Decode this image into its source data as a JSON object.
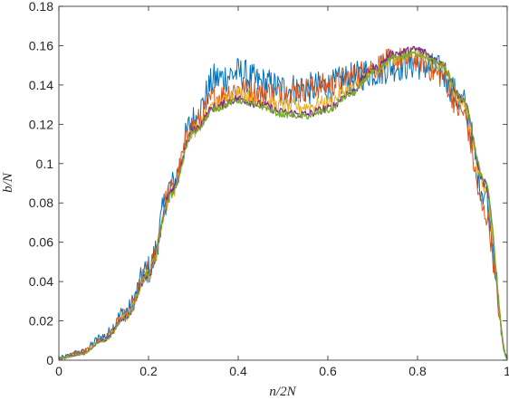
{
  "chart_data": {
    "type": "line",
    "title": "",
    "xlabel": "n/2N",
    "ylabel": "b/N",
    "xlim": [
      0,
      1
    ],
    "ylim": [
      0,
      0.18
    ],
    "xticks": [
      0,
      0.2,
      0.4,
      0.6,
      0.8,
      1
    ],
    "yticks": [
      0,
      0.02,
      0.04,
      0.06,
      0.08,
      0.1,
      0.12,
      0.14,
      0.16,
      0.18
    ],
    "xtick_labels": [
      "0",
      "0.2",
      "0.4",
      "0.6",
      "0.8",
      "1"
    ],
    "ytick_labels": [
      "0",
      "0.02",
      "0.04",
      "0.06",
      "0.08",
      "0.1",
      "0.12",
      "0.14",
      "0.16",
      "0.18"
    ],
    "grid": false,
    "legend": "none",
    "x": [
      0,
      0.05,
      0.1,
      0.15,
      0.2,
      0.25,
      0.3,
      0.35,
      0.4,
      0.45,
      0.5,
      0.55,
      0.6,
      0.65,
      0.7,
      0.75,
      0.8,
      0.85,
      0.9,
      0.95,
      1.0
    ],
    "series": [
      {
        "color": "#0072BD",
        "noise": 0.0085,
        "values": [
          0.001,
          0.004,
          0.012,
          0.025,
          0.046,
          0.088,
          0.122,
          0.143,
          0.146,
          0.141,
          0.138,
          0.138,
          0.139,
          0.143,
          0.147,
          0.15,
          0.151,
          0.147,
          0.131,
          0.085,
          0.001
        ]
      },
      {
        "color": "#D95319",
        "noise": 0.0065,
        "values": [
          0.001,
          0.004,
          0.011,
          0.023,
          0.045,
          0.086,
          0.12,
          0.134,
          0.138,
          0.136,
          0.136,
          0.138,
          0.14,
          0.144,
          0.149,
          0.153,
          0.153,
          0.145,
          0.126,
          0.075,
          0.001
        ]
      },
      {
        "color": "#EDB120",
        "noise": 0.0038,
        "values": [
          0.001,
          0.003,
          0.01,
          0.022,
          0.044,
          0.085,
          0.117,
          0.13,
          0.136,
          0.132,
          0.129,
          0.129,
          0.131,
          0.138,
          0.147,
          0.154,
          0.156,
          0.15,
          0.131,
          0.088,
          0.001
        ]
      },
      {
        "color": "#7E2F8E",
        "noise": 0.0022,
        "values": [
          0.001,
          0.003,
          0.01,
          0.022,
          0.044,
          0.085,
          0.117,
          0.129,
          0.133,
          0.13,
          0.126,
          0.125,
          0.128,
          0.136,
          0.148,
          0.156,
          0.158,
          0.152,
          0.133,
          0.09,
          0.001
        ]
      },
      {
        "color": "#77AC30",
        "noise": 0.0016,
        "values": [
          0.001,
          0.003,
          0.01,
          0.022,
          0.044,
          0.084,
          0.116,
          0.128,
          0.132,
          0.129,
          0.125,
          0.124,
          0.127,
          0.135,
          0.146,
          0.154,
          0.156,
          0.151,
          0.133,
          0.091,
          0.001
        ]
      }
    ]
  }
}
